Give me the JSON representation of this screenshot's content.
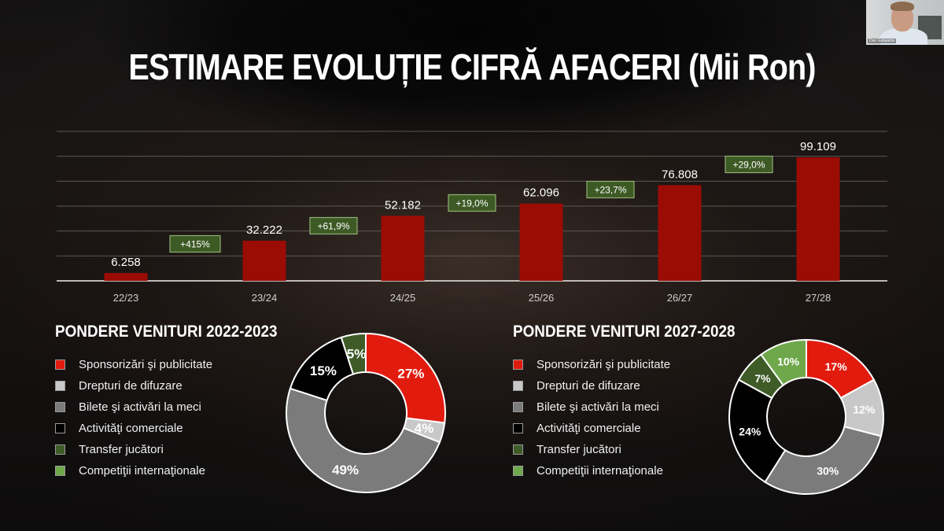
{
  "title": "ESTIMARE EVOLUȚIE CIFRĂ AFACERI (Mii Ron)",
  "webcam": {
    "participant_name": "Dan Gataiantu"
  },
  "colors": {
    "bar": "#9b0c05",
    "growth_box_fill": "#3d5a25",
    "growth_box_border": "#8fae74",
    "sponsorizari": "#e21b0f",
    "drepturi": "#c8c8c8",
    "bilete": "#7b7b7b",
    "activitati": "#000000",
    "transfer": "#3e5b28",
    "competitii": "#6fa84b"
  },
  "bar_chart": {
    "categories": [
      "22/23",
      "23/24",
      "24/25",
      "25/26",
      "26/27",
      "27/28"
    ],
    "value_labels": [
      "6.258",
      "32.222",
      "52.182",
      "62.096",
      "76.808",
      "99.109"
    ],
    "growth_labels": [
      "+415%",
      "+61,9%",
      "+19,0%",
      "+23,7%",
      "+29,0%"
    ]
  },
  "donut_left": {
    "title": "PONDERE VENITURI 2022-2023",
    "legend": [
      "Sponsorizări şi publicitate",
      "Drepturi de difuzare",
      "Bilete şi activări la meci",
      "Activităţi comerciale",
      "Transfer jucători",
      "Competiţii internaţionale"
    ],
    "labels": [
      "27%",
      "4%",
      "49%",
      "15%",
      "5%"
    ]
  },
  "donut_right": {
    "title": "PONDERE VENITURI 2027-2028",
    "legend": [
      "Sponsorizări şi publicitate",
      "Drepturi  de difuzare",
      "Bilete şi activări la meci",
      "Activităţi comerciale",
      "Transfer jucători",
      "Competiţii internaţionale"
    ],
    "labels": [
      "17%",
      "12%",
      "30%",
      "24%",
      "7%",
      "10%"
    ]
  },
  "chart_data": [
    {
      "type": "bar",
      "title": "ESTIMARE EVOLUȚIE CIFRĂ AFACERI (Mii Ron)",
      "categories": [
        "22/23",
        "23/24",
        "24/25",
        "25/26",
        "26/27",
        "27/28"
      ],
      "values": [
        6258,
        32222,
        52182,
        62096,
        76808,
        99109
      ],
      "annotations": [
        "+415%",
        "+61,9%",
        "+19,0%",
        "+23,7%",
        "+29,0%"
      ],
      "xlabel": "",
      "ylabel": "Mii Ron",
      "ylim": [
        0,
        120000
      ],
      "grid": true,
      "legend": "none"
    },
    {
      "type": "pie",
      "title": "PONDERE VENITURI 2022-2023",
      "categories": [
        "Sponsorizări şi publicitate",
        "Drepturi de difuzare",
        "Bilete şi activări la meci",
        "Activităţi comerciale",
        "Transfer jucători",
        "Competiţii internaţionale"
      ],
      "values": [
        27,
        4,
        49,
        15,
        5,
        0
      ],
      "donut": true,
      "legend": "left"
    },
    {
      "type": "pie",
      "title": "PONDERE VENITURI 2027-2028",
      "categories": [
        "Sponsorizări şi publicitate",
        "Drepturi de difuzare",
        "Bilete şi activări la meci",
        "Activităţi comerciale",
        "Transfer jucători",
        "Competiţii internaţionale"
      ],
      "values": [
        17,
        12,
        30,
        24,
        7,
        10
      ],
      "donut": true,
      "legend": "left"
    }
  ]
}
